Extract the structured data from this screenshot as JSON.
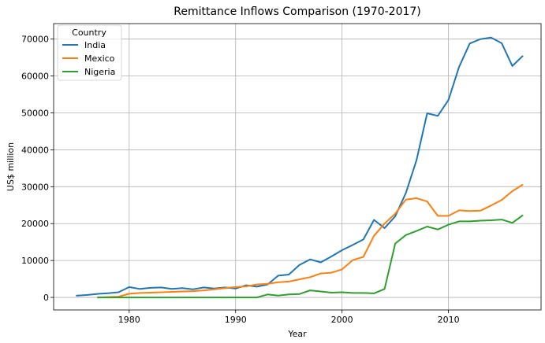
{
  "chart_data": {
    "type": "line",
    "title": "Remittance Inflows Comparison (1970-2017)",
    "xlabel": "Year",
    "ylabel": "US$ million",
    "xlim": [
      1972.9,
      2018.7
    ],
    "ylim": [
      -3400,
      74200
    ],
    "xticks": [
      1980,
      1990,
      2000,
      2010
    ],
    "yticks": [
      0,
      10000,
      20000,
      30000,
      40000,
      50000,
      60000,
      70000
    ],
    "grid": true,
    "legend": {
      "title": "Country",
      "placement": "top-left"
    },
    "series": [
      {
        "name": "India",
        "color": "#1f77b4",
        "x": [
          1975,
          1976,
          1977,
          1978,
          1979,
          1980,
          1981,
          1982,
          1983,
          1984,
          1985,
          1986,
          1987,
          1988,
          1989,
          1990,
          1991,
          1992,
          1993,
          1994,
          1995,
          1996,
          1997,
          1998,
          1999,
          2000,
          2001,
          2002,
          2003,
          2004,
          2005,
          2006,
          2007,
          2008,
          2009,
          2010,
          2011,
          2012,
          2013,
          2014,
          2015,
          2016,
          2017
        ],
        "y": [
          450,
          650,
          950,
          1150,
          1400,
          2800,
          2300,
          2600,
          2700,
          2300,
          2500,
          2200,
          2700,
          2400,
          2700,
          2400,
          3300,
          2900,
          3500,
          5900,
          6200,
          8800,
          10300,
          9500,
          11100,
          12800,
          14200,
          15700,
          21000,
          18800,
          22000,
          28300,
          37200,
          49900,
          49200,
          53500,
          62500,
          68800,
          70000,
          70400,
          68900,
          62700,
          65500
        ]
      },
      {
        "name": "Mexico",
        "color": "#ff7f0e",
        "x": [
          1977,
          1978,
          1979,
          1980,
          1981,
          1982,
          1983,
          1984,
          1985,
          1986,
          1987,
          1988,
          1989,
          1990,
          1991,
          1992,
          1993,
          1994,
          1995,
          1996,
          1997,
          1998,
          1999,
          2000,
          2001,
          2002,
          2003,
          2004,
          2005,
          2006,
          2007,
          2008,
          2009,
          2010,
          2011,
          2012,
          2013,
          2014,
          2015,
          2016,
          2017
        ],
        "y": [
          0,
          100,
          200,
          1000,
          1200,
          1300,
          1400,
          1500,
          1600,
          1700,
          1900,
          2200,
          2500,
          2800,
          3000,
          3500,
          3700,
          4100,
          4300,
          4900,
          5500,
          6500,
          6700,
          7600,
          10100,
          11000,
          16700,
          20000,
          22700,
          26500,
          26900,
          26000,
          22100,
          22100,
          23600,
          23400,
          23500,
          24900,
          26400,
          28800,
          30600
        ]
      },
      {
        "name": "Nigeria",
        "color": "#2ca02c",
        "x": [
          1977,
          1978,
          1979,
          1980,
          1981,
          1982,
          1983,
          1984,
          1985,
          1986,
          1987,
          1988,
          1989,
          1990,
          1991,
          1992,
          1993,
          1994,
          1995,
          1996,
          1997,
          1998,
          1999,
          2000,
          2001,
          2002,
          2003,
          2004,
          2005,
          2006,
          2007,
          2008,
          2009,
          2010,
          2011,
          2012,
          2013,
          2014,
          2015,
          2016,
          2017
        ],
        "y": [
          0,
          0,
          0,
          0,
          0,
          0,
          0,
          0,
          0,
          0,
          0,
          0,
          0,
          0,
          0,
          0,
          800,
          500,
          800,
          900,
          1900,
          1600,
          1300,
          1400,
          1200,
          1200,
          1100,
          2300,
          14600,
          16900,
          18000,
          19200,
          18400,
          19700,
          20600,
          20600,
          20800,
          20900,
          21100,
          20200,
          22300
        ]
      }
    ]
  }
}
